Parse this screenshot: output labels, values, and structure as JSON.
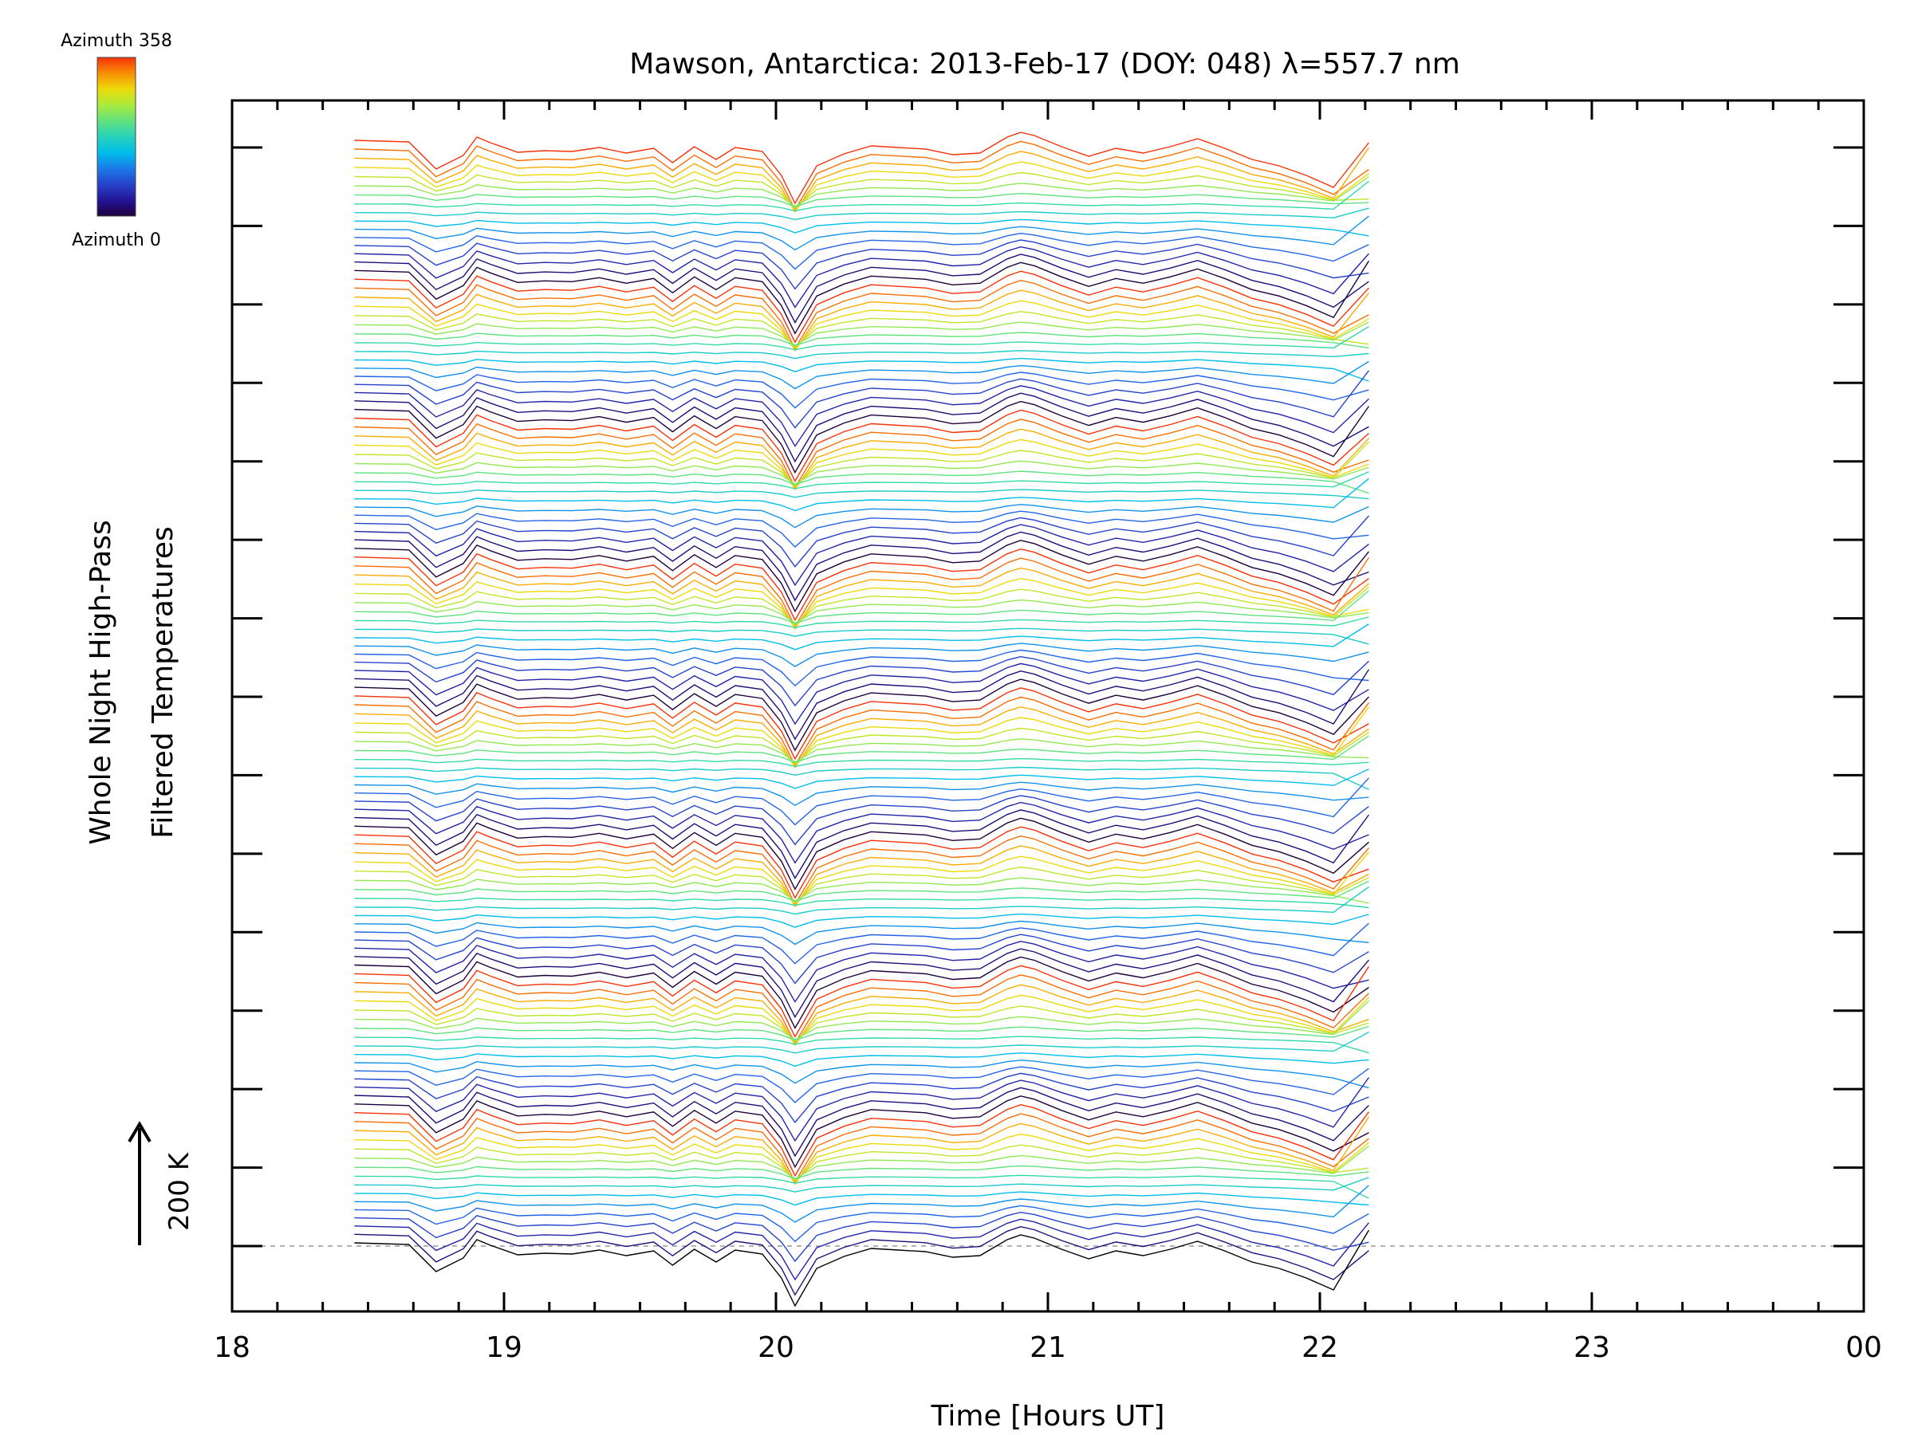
{
  "chart_data": {
    "type": "line",
    "title": "Mawson, Antarctica: 2013-Feb-17 (DOY: 048) λ=557.7 nm",
    "xlabel": "Time [Hours UT]",
    "ylabel_line1": "Whole Night High-Pass",
    "ylabel_line2": "Filtered Temperatures",
    "xlim": [
      18,
      24
    ],
    "x_tick_labels": [
      "18",
      "19",
      "20",
      "21",
      "22",
      "23",
      "00"
    ],
    "scale_bar_label": "200 K",
    "colorbar": {
      "max_label": "Azimuth 358",
      "min_label": "Azimuth 0",
      "colormap": "rainbow"
    },
    "series_count": 128,
    "cycles": 8,
    "x": [
      18.45,
      18.55,
      18.65,
      18.75,
      18.85,
      18.9,
      18.95,
      19.05,
      19.15,
      19.25,
      19.35,
      19.45,
      19.55,
      19.62,
      19.7,
      19.78,
      19.85,
      19.95,
      20.02,
      20.07,
      20.15,
      20.25,
      20.35,
      20.45,
      20.55,
      20.65,
      20.75,
      20.85,
      20.9,
      20.95,
      21.05,
      21.15,
      21.25,
      21.35,
      21.45,
      21.55,
      21.65,
      21.75,
      21.85,
      21.95,
      22.05,
      22.18
    ],
    "base_profile": [
      4,
      3,
      2,
      -32,
      -15,
      8,
      1,
      -11,
      -9,
      -10,
      -5,
      -12,
      -6,
      -24,
      -4,
      -20,
      -5,
      -10,
      -40,
      -75,
      -28,
      -13,
      -3,
      -5,
      -7,
      -14,
      -12,
      8,
      14,
      10,
      -4,
      -16,
      -6,
      -12,
      -4,
      6,
      -6,
      -20,
      -28,
      -40,
      -55,
      -10
    ],
    "bottom_series_line_color": "#000000"
  }
}
